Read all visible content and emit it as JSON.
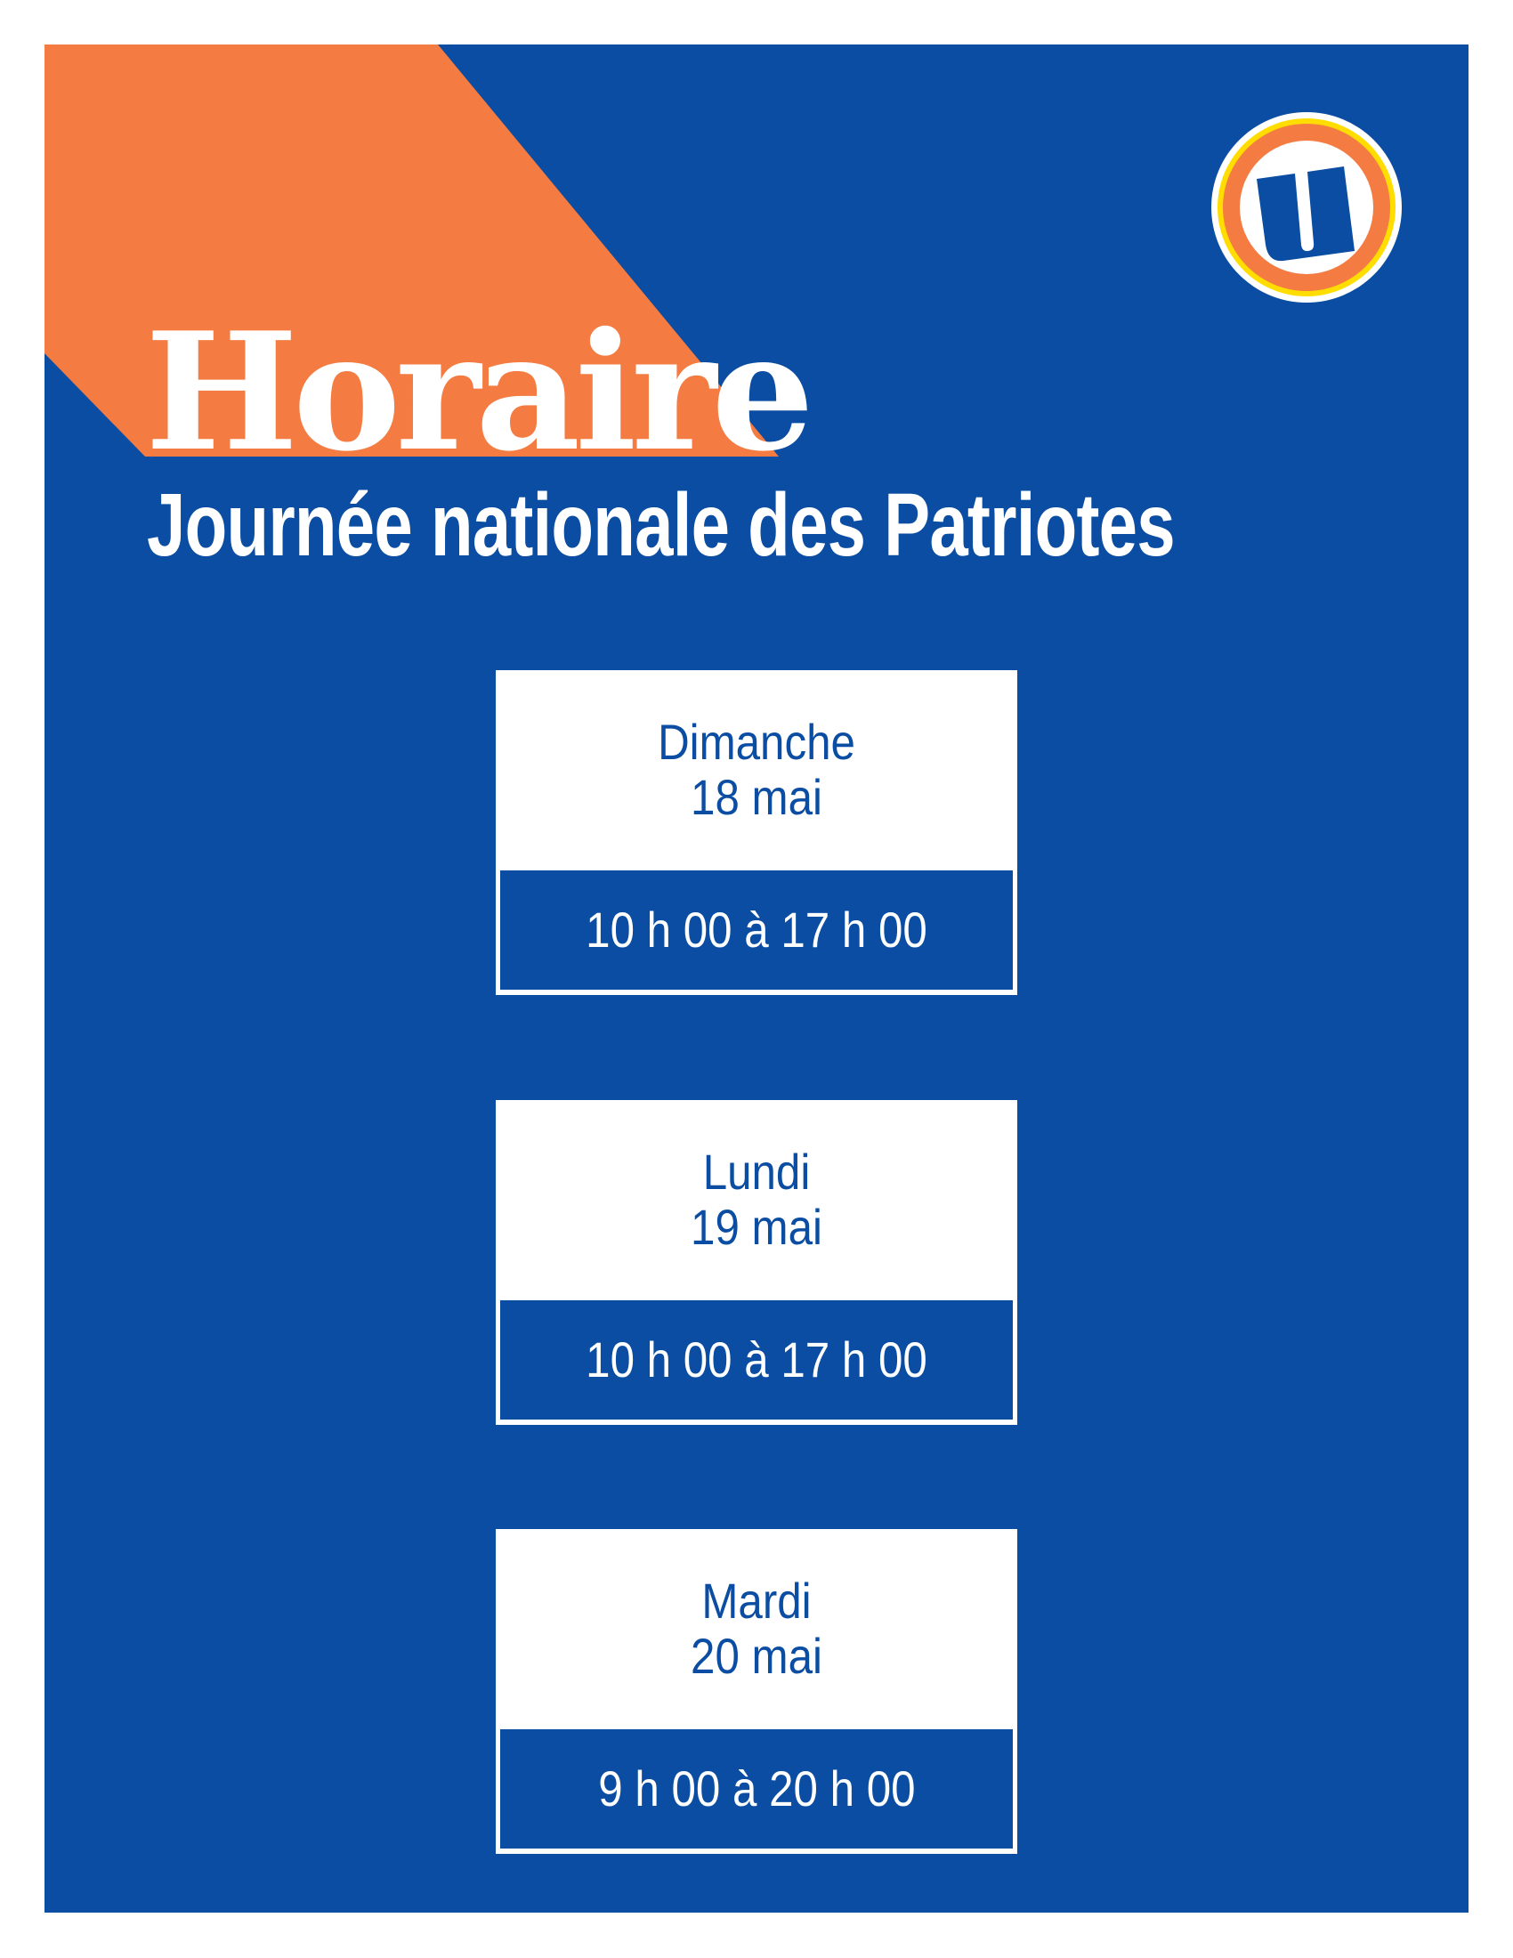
{
  "colors": {
    "brand_blue": "#0a4da2",
    "accent_orange": "#f47c42",
    "logo_yellow": "#ffdd00",
    "background": "#ffffff"
  },
  "logo": {
    "name": "u-logo-icon",
    "letter": "U"
  },
  "header": {
    "title": "Horaire",
    "subtitle": "Journée nationale des Patriotes"
  },
  "schedule": [
    {
      "day": "Dimanche",
      "date": "18 mai",
      "hours": "10 h 00 à 17 h 00"
    },
    {
      "day": "Lundi",
      "date": "19 mai",
      "hours": "10 h 00 à 17 h 00"
    },
    {
      "day": "Mardi",
      "date": "20 mai",
      "hours": "9 h 00 à 20 h 00"
    }
  ]
}
